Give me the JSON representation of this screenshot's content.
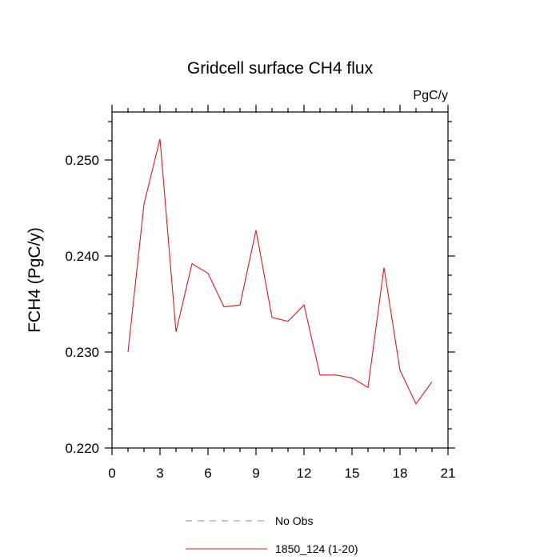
{
  "chart_data": {
    "type": "line",
    "title": "Gridcell surface CH4 flux",
    "units_label": "PgC/y",
    "ylabel": "FCH4  (PgC/y)",
    "xlabel": "",
    "xlim": [
      0,
      21
    ],
    "ylim": [
      0.22,
      0.255
    ],
    "x_ticks": [
      0,
      3,
      6,
      9,
      12,
      15,
      18,
      21
    ],
    "y_ticks": [
      0.22,
      0.23,
      0.24,
      0.25
    ],
    "y_tick_labels": [
      "0.220",
      "0.230",
      "0.240",
      "0.250"
    ],
    "grid": false,
    "legend_position": "bottom-center",
    "series": [
      {
        "name": "1850_124 (1-20)",
        "color": "#e8141c",
        "style": "solid",
        "x": [
          1,
          2,
          3,
          4,
          5,
          6,
          7,
          8,
          9,
          10,
          11,
          12,
          13,
          14,
          15,
          16,
          17,
          18,
          19,
          20
        ],
        "values": [
          0.23,
          0.2454,
          0.2522,
          0.2321,
          0.2392,
          0.2382,
          0.2347,
          0.2349,
          0.2427,
          0.2336,
          0.2332,
          0.2349,
          0.2276,
          0.2276,
          0.2273,
          0.2263,
          0.2388,
          0.2281,
          0.2246,
          0.2269
        ]
      }
    ],
    "legend": [
      {
        "label": "No Obs",
        "color": "#8080e0",
        "style": "dashed"
      },
      {
        "label": "1850_124 (1-20)",
        "color": "#e8141c",
        "style": "solid"
      }
    ]
  }
}
